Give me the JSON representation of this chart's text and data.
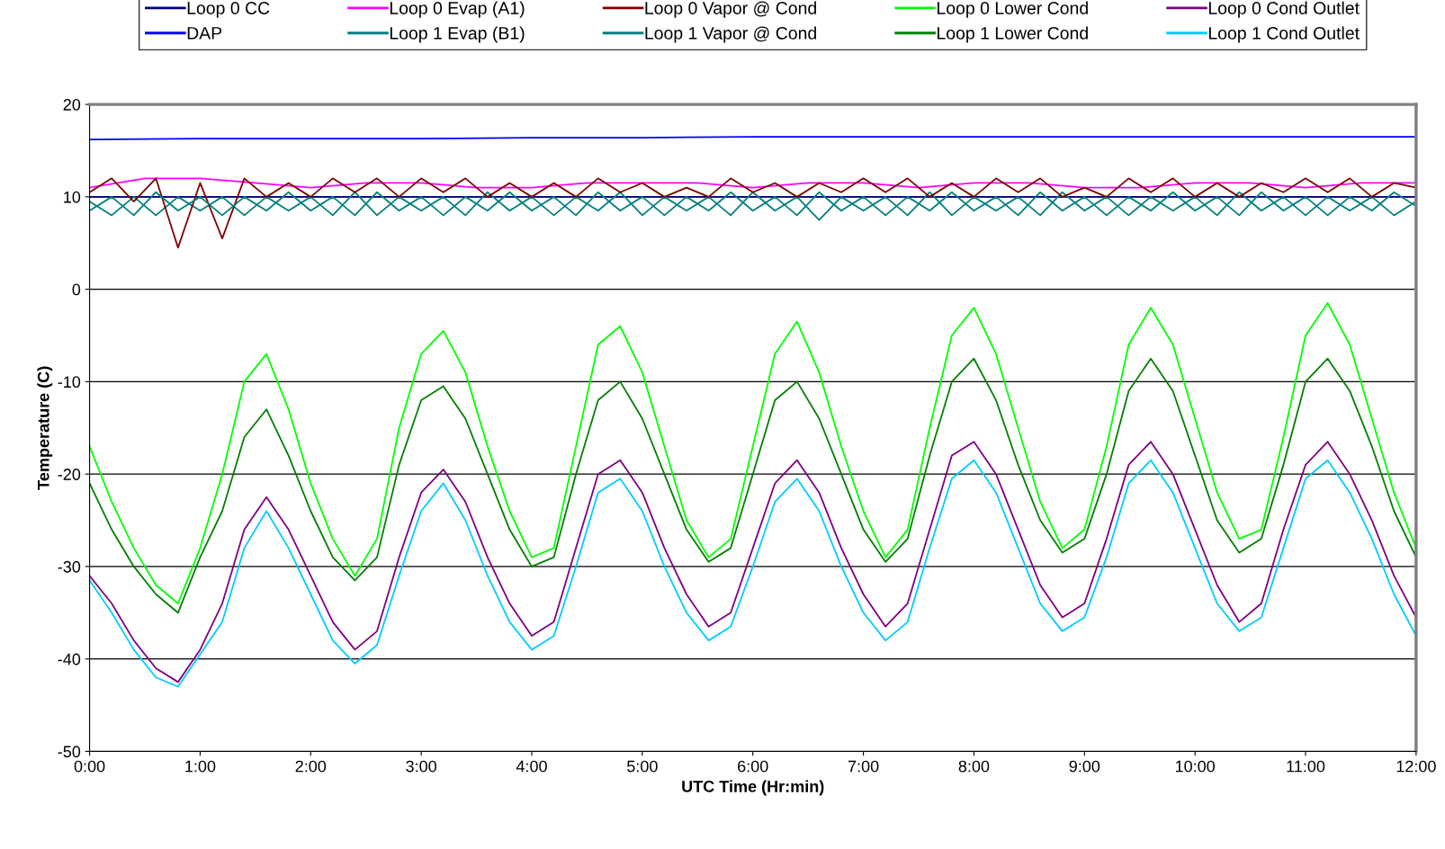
{
  "chart_data": {
    "type": "line",
    "xlabel": "UTC Time (Hr:min)",
    "ylabel": "Temperature (C)",
    "xlim": [
      0,
      12
    ],
    "ylim": [
      -50,
      20
    ],
    "xticks": [
      {
        "value": 0,
        "label": "0:00"
      },
      {
        "value": 1,
        "label": "1:00"
      },
      {
        "value": 2,
        "label": "2:00"
      },
      {
        "value": 3,
        "label": "3:00"
      },
      {
        "value": 4,
        "label": "4:00"
      },
      {
        "value": 5,
        "label": "5:00"
      },
      {
        "value": 6,
        "label": "6:00"
      },
      {
        "value": 7,
        "label": "7:00"
      },
      {
        "value": 8,
        "label": "8:00"
      },
      {
        "value": 9,
        "label": "9:00"
      },
      {
        "value": 10,
        "label": "10:00"
      },
      {
        "value": 11,
        "label": "11:00"
      },
      {
        "value": 12,
        "label": "12:00"
      }
    ],
    "yticks": [
      -50,
      -40,
      -30,
      -20,
      -10,
      0,
      10,
      20
    ],
    "grid": "y",
    "legend": "top",
    "marker": "none",
    "line_style": "solid",
    "x": [
      0,
      0.2,
      0.4,
      0.6,
      0.8,
      1.0,
      1.2,
      1.4,
      1.6,
      1.8,
      2.0,
      2.2,
      2.4,
      2.6,
      2.8,
      3.0,
      3.2,
      3.4,
      3.6,
      3.8,
      4.0,
      4.2,
      4.4,
      4.6,
      4.8,
      5.0,
      5.2,
      5.4,
      5.6,
      5.8,
      6.0,
      6.2,
      6.4,
      6.6,
      6.8,
      7.0,
      7.2,
      7.4,
      7.6,
      7.8,
      8.0,
      8.2,
      8.4,
      8.6,
      8.8,
      9.0,
      9.2,
      9.4,
      9.6,
      9.8,
      10.0,
      10.2,
      10.4,
      10.6,
      10.8,
      11.0,
      11.2,
      11.4,
      11.6,
      11.8,
      12.0
    ],
    "series": [
      {
        "name": "Loop 0 CC",
        "color": "#000080",
        "x": [
          0,
          1,
          2,
          3,
          4,
          5,
          6,
          7,
          8,
          9,
          10,
          11,
          12
        ],
        "values": [
          10,
          10,
          10,
          10,
          10,
          10,
          10,
          10,
          10,
          10,
          10,
          10,
          10
        ]
      },
      {
        "name": "DAP",
        "color": "#0000ff",
        "x": [
          0,
          1,
          2,
          3,
          4,
          5,
          6,
          7,
          8,
          9,
          10,
          11,
          12
        ],
        "values": [
          16.2,
          16.3,
          16.3,
          16.3,
          16.4,
          16.4,
          16.5,
          16.5,
          16.5,
          16.5,
          16.5,
          16.5,
          16.5
        ]
      },
      {
        "name": "Loop 0 Evap (A1)",
        "color": "#ff00ff",
        "x": [
          0,
          0.5,
          1,
          1.5,
          2,
          2.5,
          3,
          3.5,
          4,
          4.5,
          5,
          5.5,
          6,
          6.5,
          7,
          7.5,
          8,
          8.5,
          9,
          9.5,
          10,
          10.5,
          11,
          11.5,
          12
        ],
        "values": [
          11,
          12,
          12,
          11.5,
          11,
          11.5,
          11.5,
          11,
          11,
          11.5,
          11.5,
          11.5,
          11,
          11.5,
          11.5,
          11,
          11.5,
          11.5,
          11,
          11,
          11.5,
          11.5,
          11,
          11.5,
          11.5
        ]
      },
      {
        "name": "Loop 1 Evap (B1)",
        "color": "#008080",
        "values": [
          9.5,
          8,
          10,
          8,
          10,
          8.5,
          10,
          8,
          10,
          8.5,
          10,
          8,
          10.5,
          8,
          10,
          8.5,
          10,
          8,
          10.5,
          8.5,
          10,
          8,
          10,
          8.5,
          10.5,
          8,
          10,
          8.5,
          10,
          8,
          10.5,
          8.5,
          10,
          7.5,
          10,
          8.5,
          10,
          8,
          10.5,
          8,
          10,
          8.5,
          10,
          8,
          10.5,
          8.5,
          10,
          8,
          10,
          8.5,
          10,
          8,
          10.5,
          8.5,
          10,
          8,
          10,
          8.5,
          10,
          8,
          9.5
        ]
      },
      {
        "name": "Loop 0 Vapor @ Cond",
        "color": "#800000",
        "values": [
          10.5,
          12,
          9.5,
          12,
          4.5,
          11.5,
          5.5,
          12,
          10,
          11.5,
          10,
          12,
          10.5,
          12,
          10,
          12,
          10.5,
          12,
          10,
          11.5,
          10,
          11.5,
          10,
          12,
          10.5,
          11.5,
          10,
          11,
          10,
          12,
          10.5,
          11.5,
          10,
          11.5,
          10.5,
          12,
          10.5,
          12,
          10,
          11.5,
          10,
          12,
          10.5,
          12,
          10,
          11,
          10,
          12,
          10.5,
          12,
          10,
          11.5,
          10,
          11.5,
          10.5,
          12,
          10.5,
          12,
          10,
          11.5,
          11
        ]
      },
      {
        "name": "Loop 1 Vapor @ Cond",
        "color": "#008080",
        "values": [
          8.5,
          10,
          8,
          10.5,
          8.5,
          10,
          8,
          10,
          8.5,
          10.5,
          8.5,
          10,
          8,
          10.5,
          8.5,
          10,
          8,
          10,
          8.5,
          10.5,
          8.5,
          10,
          8,
          10.5,
          8.5,
          10,
          8,
          10,
          8.5,
          10.5,
          8.5,
          10,
          8,
          10.5,
          8.5,
          10,
          8,
          10,
          8.5,
          10.5,
          8.5,
          10,
          8,
          10.5,
          8.5,
          10,
          8,
          10,
          8.5,
          10.5,
          8.5,
          10,
          8,
          10.5,
          8.5,
          10,
          8,
          10,
          8.5,
          10.5,
          9
        ]
      },
      {
        "name": "Loop 0 Lower Cond",
        "color": "#00ff00",
        "values": [
          -17,
          -23,
          -28,
          -32,
          -34,
          -28,
          -20,
          -10,
          -7,
          -13,
          -21,
          -27,
          -31,
          -27,
          -15,
          -7,
          -4.5,
          -9,
          -17,
          -24,
          -29,
          -28,
          -17,
          -6,
          -4,
          -9,
          -17,
          -25,
          -29,
          -27,
          -17,
          -7,
          -3.5,
          -9,
          -17,
          -24,
          -29,
          -26,
          -15,
          -5,
          -2,
          -7,
          -15,
          -23,
          -28,
          -26,
          -17,
          -6,
          -2,
          -6,
          -14,
          -22,
          -27,
          -26,
          -16,
          -5,
          -1.5,
          -6,
          -14,
          -22,
          -28
        ]
      },
      {
        "name": "Loop 1 Lower Cond",
        "color": "#008000",
        "values": [
          -21,
          -26,
          -30,
          -33,
          -35,
          -29,
          -24,
          -16,
          -13,
          -18,
          -24,
          -29,
          -31.5,
          -29,
          -19,
          -12,
          -10.5,
          -14,
          -20,
          -26,
          -30,
          -29,
          -20,
          -12,
          -10,
          -14,
          -20,
          -26,
          -29.5,
          -28,
          -20,
          -12,
          -10,
          -14,
          -20,
          -26,
          -29.5,
          -27,
          -18,
          -10,
          -7.5,
          -12,
          -19,
          -25,
          -28.5,
          -27,
          -20,
          -11,
          -7.5,
          -11,
          -18,
          -25,
          -28.5,
          -27,
          -19,
          -10,
          -7.5,
          -11,
          -17,
          -24,
          -29
        ]
      },
      {
        "name": "Loop 0 Cond Outlet",
        "color": "#800080",
        "values": [
          -31,
          -34,
          -38,
          -41,
          -42.5,
          -39,
          -34,
          -26,
          -22.5,
          -26,
          -31,
          -36,
          -39,
          -37,
          -29,
          -22,
          -19.5,
          -23,
          -29,
          -34,
          -37.5,
          -36,
          -28,
          -20,
          -18.5,
          -22,
          -28,
          -33,
          -36.5,
          -35,
          -28,
          -21,
          -18.5,
          -22,
          -28,
          -33,
          -36.5,
          -34,
          -26,
          -18,
          -16.5,
          -20,
          -26,
          -32,
          -35.5,
          -34,
          -27,
          -19,
          -16.5,
          -20,
          -26,
          -32,
          -36,
          -34,
          -26,
          -19,
          -16.5,
          -20,
          -25,
          -31,
          -35.5
        ]
      },
      {
        "name": "Loop 1 Cond Outlet",
        "color": "#00ccff",
        "values": [
          -31.5,
          -35,
          -39,
          -42,
          -43,
          -39.5,
          -36,
          -28,
          -24,
          -28,
          -33,
          -38,
          -40.5,
          -38.5,
          -31,
          -24,
          -21,
          -25,
          -31,
          -36,
          -39,
          -37.5,
          -30,
          -22,
          -20.5,
          -24,
          -30,
          -35,
          -38,
          -36.5,
          -30,
          -23,
          -20.5,
          -24,
          -30,
          -35,
          -38,
          -36,
          -28,
          -20.5,
          -18.5,
          -22,
          -28,
          -34,
          -37,
          -35.5,
          -29,
          -21,
          -18.5,
          -22,
          -28,
          -34,
          -37,
          -35.5,
          -28,
          -20.5,
          -18.5,
          -22,
          -27,
          -33,
          -37.5
        ]
      }
    ]
  }
}
